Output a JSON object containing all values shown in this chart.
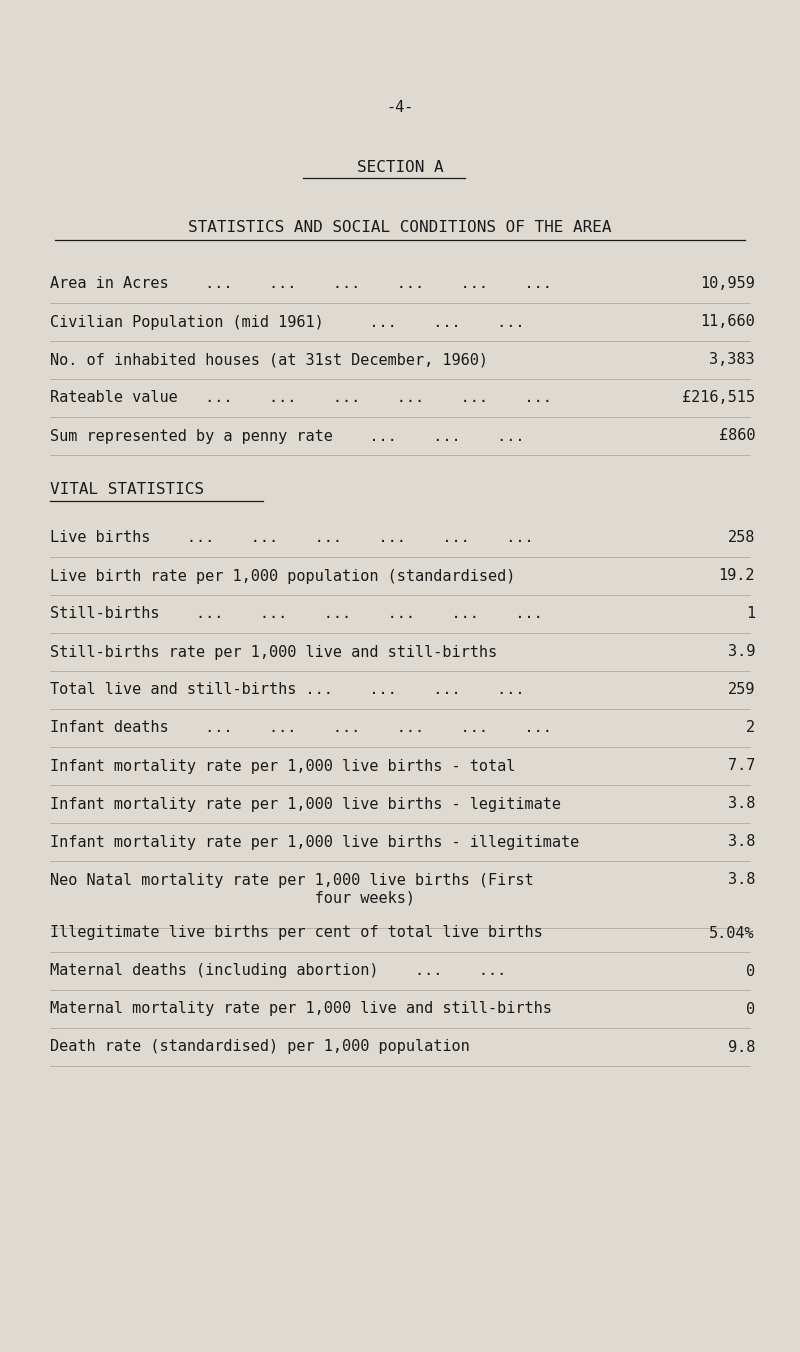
{
  "page_number": "-4-",
  "section_title": "SECTION A",
  "subtitle": "STATISTICS AND SOCIAL CONDITIONS OF THE AREA",
  "background_color": "#dedad2",
  "text_color": "#1a1a1a",
  "area_rows": [
    {
      "label": "Area in Acres    ...    ...    ...    ...    ...    ...",
      "value": "10,959"
    },
    {
      "label": "Civilian Population (mid 1961)     ...    ...    ...",
      "value": "11,660"
    },
    {
      "label": "No. of inhabited houses (at 31st December, 1960)",
      "value": "3,383"
    },
    {
      "label": "Rateable value   ...    ...    ...    ...    ...    ...",
      "value": "£216,515"
    },
    {
      "label": "Sum represented by a penny rate    ...    ...    ...",
      "value": "£860"
    }
  ],
  "vital_stats_header": "VITAL STATISTICS",
  "vital_rows": [
    {
      "label": "Live births    ...    ...    ...    ...    ...    ...",
      "value": "258"
    },
    {
      "label": "Live birth rate per 1,000 population (standardised)",
      "value": "19.2"
    },
    {
      "label": "Still-births    ...    ...    ...    ...    ...    ...",
      "value": "1"
    },
    {
      "label": "Still-births rate per 1,000 live and still-births",
      "value": "3.9"
    },
    {
      "label": "Total live and still-births ...    ...    ...    ...",
      "value": "259"
    },
    {
      "label": "Infant deaths    ...    ...    ...    ...    ...    ...",
      "value": "2"
    },
    {
      "label": "Infant mortality rate per 1,000 live births - total",
      "value": "7.7"
    },
    {
      "label": "Infant mortality rate per 1,000 live births - legitimate",
      "value": "3.8"
    },
    {
      "label": "Infant mortality rate per 1,000 live births - illegitimate",
      "value": "3.8"
    },
    {
      "label": "Neo Natal mortality rate per 1,000 live births (First",
      "value": "3.8",
      "continuation": "                             four weeks)"
    },
    {
      "label": "Illegitimate live births per cent of total live births",
      "value": "5.04%"
    },
    {
      "label": "Maternal deaths (including abortion)    ...    ...",
      "value": "0"
    },
    {
      "label": "Maternal mortality rate per 1,000 live and still-births",
      "value": "0"
    },
    {
      "label": "Death rate (standardised) per 1,000 population",
      "value": "9.8"
    }
  ],
  "font_size": 11.0,
  "header_fontsize": 11.5
}
